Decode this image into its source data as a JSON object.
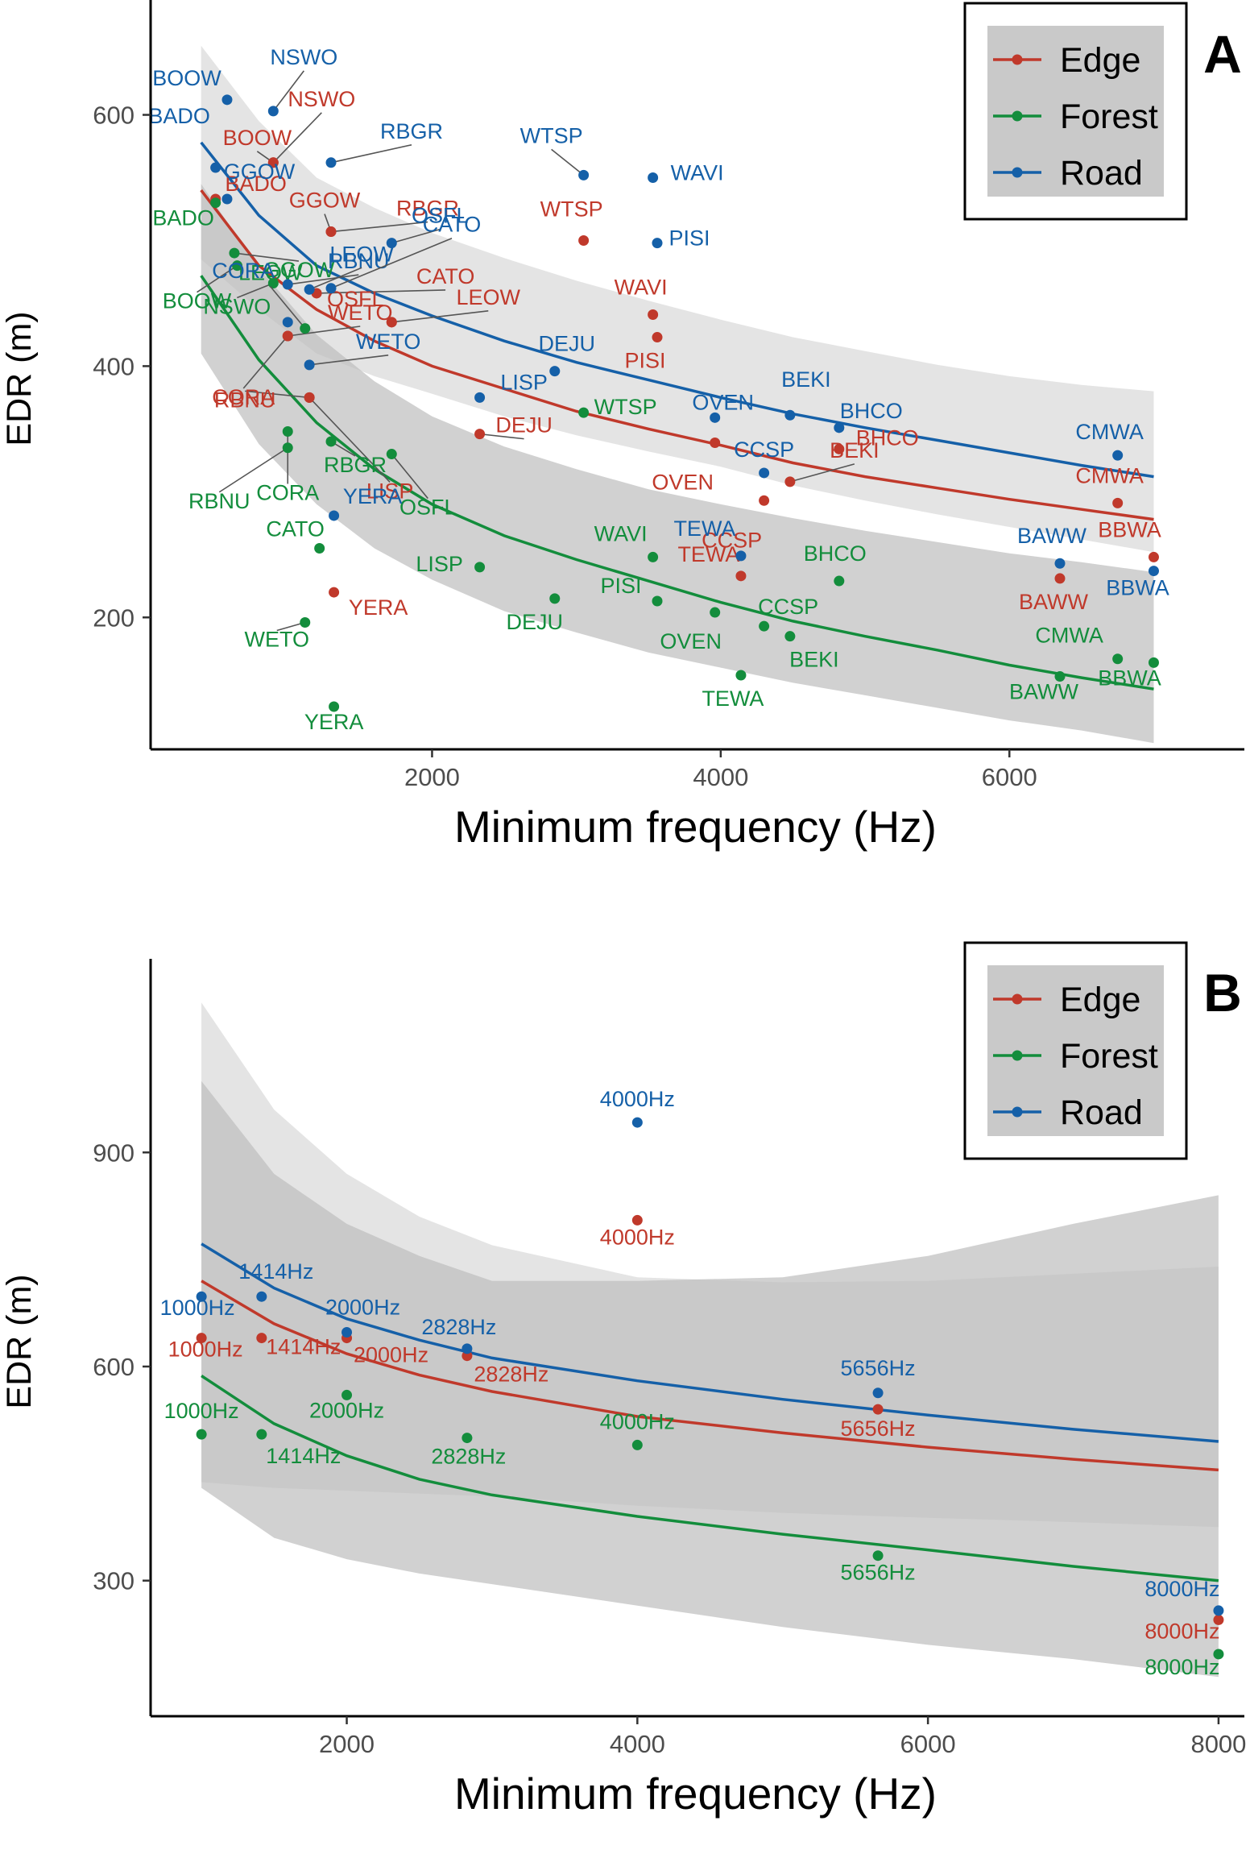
{
  "colors": {
    "Edge": "#c0392b",
    "Forest": "#138d3c",
    "Road": "#1560a8"
  },
  "chart_data": [
    {
      "type": "scatter",
      "panel": "A",
      "xlabel": "Minimum frequency (Hz)",
      "ylabel": "EDR (m)",
      "xlim": [
        50,
        7600
      ],
      "ylim": [
        95,
        685
      ],
      "xticks": [
        2000,
        4000,
        6000
      ],
      "yticks": [
        200,
        400,
        600
      ],
      "grid": false,
      "legend_position": "top-right",
      "series": [
        {
          "name": "Edge",
          "points": [
            {
              "label": "BADO",
              "x": 500,
              "y": 533
            },
            {
              "label": "BOOW",
              "x": 900,
              "y": 562
            },
            {
              "label": "NSWO",
              "x": 900,
              "y": 562
            },
            {
              "label": "GGOW",
              "x": 1300,
              "y": 507
            },
            {
              "label": "RBGR",
              "x": 1300,
              "y": 507
            },
            {
              "label": "CATO",
              "x": 1200,
              "y": 458
            },
            {
              "label": "LEOW",
              "x": 1720,
              "y": 435
            },
            {
              "label": "OSFL",
              "x": 1720,
              "y": 435
            },
            {
              "label": "RBNU",
              "x": 1150,
              "y": 375
            },
            {
              "label": "CORA",
              "x": 1000,
              "y": 424
            },
            {
              "label": "WETO",
              "x": 1000,
              "y": 424
            },
            {
              "label": "LISP",
              "x": 1150,
              "y": 375
            },
            {
              "label": "DEJU",
              "x": 2330,
              "y": 346
            },
            {
              "label": "YERA",
              "x": 1320,
              "y": 220
            },
            {
              "label": "WTSP",
              "x": 3050,
              "y": 500
            },
            {
              "label": "WAVI",
              "x": 3530,
              "y": 441
            },
            {
              "label": "PISI",
              "x": 3560,
              "y": 423
            },
            {
              "label": "OVEN",
              "x": 3960,
              "y": 339
            },
            {
              "label": "TEWA",
              "x": 4140,
              "y": 233
            },
            {
              "label": "CCSP",
              "x": 4300,
              "y": 293
            },
            {
              "label": "BEKI",
              "x": 4480,
              "y": 308
            },
            {
              "label": "BHCO",
              "x": 4820,
              "y": 334
            },
            {
              "label": "BAWW",
              "x": 6350,
              "y": 231
            },
            {
              "label": "CMWA",
              "x": 6750,
              "y": 291
            },
            {
              "label": "BBWA",
              "x": 7000,
              "y": 248
            }
          ]
        },
        {
          "name": "Forest",
          "points": [
            {
              "label": "BADO",
              "x": 500,
              "y": 530
            },
            {
              "label": "BOOW",
              "x": 650,
              "y": 480
            },
            {
              "label": "GGOW",
              "x": 630,
              "y": 490
            },
            {
              "label": "NSWO",
              "x": 900,
              "y": 466
            },
            {
              "label": "CORA",
              "x": 1000,
              "y": 348
            },
            {
              "label": "RBNU",
              "x": 1000,
              "y": 335
            },
            {
              "label": "LEOW",
              "x": 1120,
              "y": 430
            },
            {
              "label": "WETO",
              "x": 1120,
              "y": 196
            },
            {
              "label": "RBGR",
              "x": 1300,
              "y": 340
            },
            {
              "label": "CATO",
              "x": 1220,
              "y": 255
            },
            {
              "label": "YERA",
              "x": 1320,
              "y": 129
            },
            {
              "label": "OSFL",
              "x": 1720,
              "y": 330
            },
            {
              "label": "LISP",
              "x": 2330,
              "y": 240
            },
            {
              "label": "DEJU",
              "x": 2850,
              "y": 215
            },
            {
              "label": "WTSP",
              "x": 3050,
              "y": 363
            },
            {
              "label": "WAVI",
              "x": 3530,
              "y": 248
            },
            {
              "label": "PISI",
              "x": 3560,
              "y": 213
            },
            {
              "label": "OVEN",
              "x": 3960,
              "y": 204
            },
            {
              "label": "TEWA",
              "x": 4140,
              "y": 154
            },
            {
              "label": "CCSP",
              "x": 4300,
              "y": 193
            },
            {
              "label": "BEKI",
              "x": 4480,
              "y": 185
            },
            {
              "label": "BHCO",
              "x": 4820,
              "y": 229
            },
            {
              "label": "BAWW",
              "x": 6350,
              "y": 153
            },
            {
              "label": "CMWA",
              "x": 6750,
              "y": 167
            },
            {
              "label": "BBWA",
              "x": 7000,
              "y": 164
            }
          ]
        },
        {
          "name": "Road",
          "points": [
            {
              "label": "BOOW",
              "x": 580,
              "y": 612
            },
            {
              "label": "BADO",
              "x": 500,
              "y": 558
            },
            {
              "label": "NSWO",
              "x": 900,
              "y": 603
            },
            {
              "label": "RBGR",
              "x": 1300,
              "y": 562
            },
            {
              "label": "GGOW",
              "x": 580,
              "y": 533
            },
            {
              "label": "OSFL",
              "x": 1720,
              "y": 498
            },
            {
              "label": "RBNU",
              "x": 1000,
              "y": 465
            },
            {
              "label": "CATO",
              "x": 1300,
              "y": 462
            },
            {
              "label": "LEOW",
              "x": 1150,
              "y": 461
            },
            {
              "label": "CORA",
              "x": 1000,
              "y": 435
            },
            {
              "label": "WETO",
              "x": 1150,
              "y": 401
            },
            {
              "label": "YERA",
              "x": 1320,
              "y": 281
            },
            {
              "label": "LISP",
              "x": 2330,
              "y": 375
            },
            {
              "label": "DEJU",
              "x": 2850,
              "y": 396
            },
            {
              "label": "WTSP",
              "x": 3050,
              "y": 552
            },
            {
              "label": "WAVI",
              "x": 3530,
              "y": 550
            },
            {
              "label": "PISI",
              "x": 3560,
              "y": 498
            },
            {
              "label": "OVEN",
              "x": 3960,
              "y": 359
            },
            {
              "label": "TEWA",
              "x": 4140,
              "y": 249
            },
            {
              "label": "CCSP",
              "x": 4300,
              "y": 315
            },
            {
              "label": "BEKI",
              "x": 4480,
              "y": 361
            },
            {
              "label": "BHCO",
              "x": 4820,
              "y": 351
            },
            {
              "label": "BAWW",
              "x": 6350,
              "y": 243
            },
            {
              "label": "CMWA",
              "x": 6750,
              "y": 329
            },
            {
              "label": "BBWA",
              "x": 7000,
              "y": 237
            }
          ]
        }
      ],
      "fits": [
        {
          "series": "Road",
          "x": [
            400,
            800,
            1200,
            1600,
            2000,
            2500,
            3000,
            3500,
            4000,
            4500,
            5000,
            5500,
            6000,
            6500,
            7000
          ],
          "y": [
            578,
            520,
            480,
            458,
            440,
            420,
            403,
            389,
            375,
            362,
            351,
            341,
            331,
            321,
            312
          ]
        },
        {
          "series": "Edge",
          "x": [
            400,
            800,
            1200,
            1600,
            2000,
            2500,
            3000,
            3500,
            4000,
            4500,
            5000,
            5500,
            6000,
            6500,
            7000
          ],
          "y": [
            540,
            480,
            445,
            420,
            400,
            382,
            364,
            350,
            337,
            323,
            312,
            303,
            294,
            286,
            278
          ]
        },
        {
          "series": "Forest",
          "x": [
            400,
            800,
            1200,
            1600,
            2000,
            2500,
            3000,
            3500,
            4000,
            4500,
            5000,
            5500,
            6000,
            6500,
            7000
          ],
          "y": [
            472,
            405,
            355,
            318,
            290,
            265,
            246,
            229,
            212,
            197,
            185,
            174,
            162,
            152,
            143
          ]
        }
      ],
      "bands": [
        {
          "x": [
            400,
            800,
            1200,
            1600,
            2000,
            2500,
            3000,
            3500,
            4000,
            4500,
            5000,
            5500,
            6000,
            6500,
            7000
          ],
          "lo": [
            485,
            445,
            410,
            392,
            378,
            360,
            345,
            332,
            320,
            305,
            293,
            282,
            272,
            262,
            252
          ],
          "hi": [
            655,
            595,
            550,
            526,
            506,
            486,
            468,
            452,
            437,
            423,
            412,
            401,
            392,
            385,
            380
          ]
        },
        {
          "x": [
            400,
            800,
            1200,
            1600,
            2000,
            2500,
            3000,
            3500,
            4000,
            4500,
            5000,
            5500,
            6000,
            6500,
            7000
          ],
          "lo": [
            410,
            338,
            290,
            255,
            230,
            205,
            188,
            172,
            160,
            148,
            138,
            128,
            118,
            110,
            100
          ],
          "hi": [
            545,
            478,
            425,
            388,
            360,
            336,
            318,
            302,
            290,
            279,
            269,
            260,
            251,
            244,
            236
          ]
        }
      ]
    },
    {
      "type": "scatter",
      "panel": "B",
      "xlabel": "Minimum frequency (Hz)",
      "ylabel": "EDR (m)",
      "xlim": [
        650,
        8150
      ],
      "ylim": [
        110,
        1160
      ],
      "xticks": [
        2000,
        4000,
        6000,
        8000
      ],
      "yticks": [
        300,
        600,
        900
      ],
      "grid": false,
      "legend_position": "top-right",
      "series": [
        {
          "name": "Edge",
          "points": [
            {
              "label": "1000Hz",
              "x": 1000,
              "y": 640
            },
            {
              "label": "1414Hz",
              "x": 1414,
              "y": 640
            },
            {
              "label": "2000Hz",
              "x": 2000,
              "y": 640
            },
            {
              "label": "2828Hz",
              "x": 2828,
              "y": 615
            },
            {
              "label": "4000Hz",
              "x": 4000,
              "y": 805
            },
            {
              "label": "5656Hz",
              "x": 5656,
              "y": 540
            },
            {
              "label": "8000Hz",
              "x": 8000,
              "y": 245
            }
          ]
        },
        {
          "name": "Forest",
          "points": [
            {
              "label": "1000Hz",
              "x": 1000,
              "y": 505
            },
            {
              "label": "1414Hz",
              "x": 1414,
              "y": 505
            },
            {
              "label": "2000Hz",
              "x": 2000,
              "y": 560
            },
            {
              "label": "2828Hz",
              "x": 2828,
              "y": 500
            },
            {
              "label": "4000Hz",
              "x": 4000,
              "y": 490
            },
            {
              "label": "5656Hz",
              "x": 5656,
              "y": 335
            },
            {
              "label": "8000Hz",
              "x": 8000,
              "y": 197
            }
          ]
        },
        {
          "name": "Road",
          "points": [
            {
              "label": "1000Hz",
              "x": 1000,
              "y": 698
            },
            {
              "label": "1414Hz",
              "x": 1414,
              "y": 698
            },
            {
              "label": "2000Hz",
              "x": 2000,
              "y": 648
            },
            {
              "label": "2828Hz",
              "x": 2828,
              "y": 625
            },
            {
              "label": "4000Hz",
              "x": 4000,
              "y": 942
            },
            {
              "label": "5656Hz",
              "x": 5656,
              "y": 563
            },
            {
              "label": "8000Hz",
              "x": 8000,
              "y": 258
            }
          ]
        }
      ],
      "fits": [
        {
          "series": "Road",
          "x": [
            1000,
            1500,
            2000,
            2500,
            3000,
            4000,
            5000,
            6000,
            7000,
            8000
          ],
          "y": [
            772,
            710,
            667,
            637,
            612,
            580,
            554,
            532,
            512,
            495
          ]
        },
        {
          "series": "Edge",
          "x": [
            1000,
            1500,
            2000,
            2500,
            3000,
            4000,
            5000,
            6000,
            7000,
            8000
          ],
          "y": [
            720,
            660,
            618,
            588,
            565,
            530,
            507,
            487,
            470,
            455
          ]
        },
        {
          "series": "Forest",
          "x": [
            1000,
            1500,
            2000,
            2500,
            3000,
            4000,
            5000,
            6000,
            7000,
            8000
          ],
          "y": [
            587,
            520,
            475,
            442,
            420,
            390,
            365,
            343,
            320,
            300
          ]
        }
      ],
      "bands": [
        {
          "x": [
            1000,
            1500,
            2000,
            2500,
            3000,
            4000,
            5000,
            6000,
            7000,
            8000
          ],
          "lo": [
            438,
            430,
            426,
            422,
            418,
            405,
            395,
            388,
            382,
            375
          ],
          "hi": [
            1110,
            960,
            870,
            810,
            770,
            725,
            718,
            720,
            730,
            740
          ]
        },
        {
          "x": [
            1000,
            1500,
            2000,
            2500,
            3000,
            4000,
            5000,
            6000,
            7000,
            8000
          ],
          "lo": [
            430,
            360,
            330,
            310,
            295,
            265,
            235,
            210,
            190,
            165
          ],
          "hi": [
            1000,
            870,
            800,
            755,
            720,
            720,
            725,
            755,
            800,
            840
          ]
        }
      ]
    }
  ]
}
